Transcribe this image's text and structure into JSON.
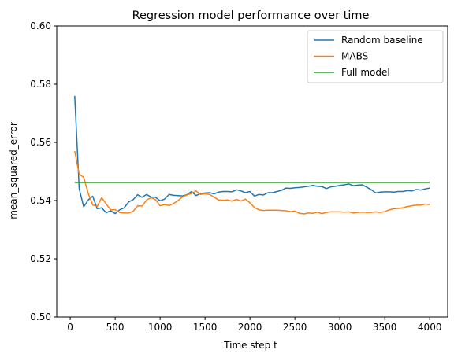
{
  "chart_data": {
    "type": "line",
    "title": "Regression model performance over time",
    "xlabel": "Time step t",
    "ylabel": "mean_squared_error",
    "xlim": [
      -150,
      4200
    ],
    "ylim": [
      0.5,
      0.6
    ],
    "xticks": [
      0,
      500,
      1000,
      1500,
      2000,
      2500,
      3000,
      3500,
      4000
    ],
    "xtick_labels": [
      "0",
      "500",
      "1000",
      "1500",
      "2000",
      "2500",
      "3000",
      "3500",
      "4000"
    ],
    "yticks": [
      0.5,
      0.52,
      0.54,
      0.56,
      0.58,
      0.6
    ],
    "ytick_labels": [
      "0.50",
      "0.52",
      "0.54",
      "0.56",
      "0.58",
      "0.60"
    ],
    "grid": false,
    "legend_position": "top-right",
    "series": [
      {
        "name": "Random baseline",
        "color": "#1f77b4",
        "x": [
          50,
          100,
          150,
          200,
          250,
          300,
          350,
          400,
          450,
          500,
          550,
          600,
          650,
          700,
          750,
          800,
          850,
          900,
          950,
          1000,
          1050,
          1100,
          1150,
          1200,
          1250,
          1300,
          1350,
          1400,
          1450,
          1500,
          1550,
          1600,
          1650,
          1700,
          1750,
          1800,
          1850,
          1900,
          1950,
          2000,
          2050,
          2100,
          2150,
          2200,
          2250,
          2300,
          2350,
          2400,
          2450,
          2500,
          2550,
          2600,
          2650,
          2700,
          2750,
          2800,
          2850,
          2900,
          2950,
          3000,
          3050,
          3100,
          3150,
          3200,
          3250,
          3300,
          3350,
          3400,
          3450,
          3500,
          3550,
          3600,
          3650,
          3700,
          3750,
          3800,
          3850,
          3900,
          3950,
          4000
        ],
        "y": [
          0.576,
          0.544,
          0.5378,
          0.5402,
          0.5415,
          0.5372,
          0.5375,
          0.5358,
          0.5365,
          0.5355,
          0.5368,
          0.5375,
          0.5395,
          0.5403,
          0.542,
          0.5411,
          0.5421,
          0.5412,
          0.5411,
          0.5399,
          0.5405,
          0.5421,
          0.5418,
          0.5417,
          0.5416,
          0.542,
          0.5431,
          0.5417,
          0.5424,
          0.5426,
          0.5427,
          0.5423,
          0.5429,
          0.5431,
          0.5431,
          0.543,
          0.5437,
          0.5433,
          0.5427,
          0.5431,
          0.5415,
          0.5421,
          0.5419,
          0.5427,
          0.5427,
          0.5431,
          0.5435,
          0.5443,
          0.5442,
          0.5444,
          0.5445,
          0.5447,
          0.5449,
          0.5452,
          0.5449,
          0.5448,
          0.5441,
          0.5447,
          0.5449,
          0.5452,
          0.5454,
          0.5457,
          0.5451,
          0.5453,
          0.5454,
          0.5446,
          0.5437,
          0.5426,
          0.5429,
          0.543,
          0.543,
          0.5429,
          0.5431,
          0.5431,
          0.5434,
          0.5433,
          0.5438,
          0.5436,
          0.544,
          0.5443
        ]
      },
      {
        "name": "MABS",
        "color": "#ff7f0e",
        "x": [
          50,
          100,
          150,
          200,
          250,
          300,
          350,
          400,
          450,
          500,
          550,
          600,
          650,
          700,
          750,
          800,
          850,
          900,
          950,
          1000,
          1050,
          1100,
          1150,
          1200,
          1250,
          1300,
          1350,
          1400,
          1450,
          1500,
          1550,
          1600,
          1650,
          1700,
          1750,
          1800,
          1850,
          1900,
          1950,
          2000,
          2050,
          2100,
          2150,
          2200,
          2250,
          2300,
          2350,
          2400,
          2450,
          2500,
          2550,
          2600,
          2650,
          2700,
          2750,
          2800,
          2850,
          2900,
          2950,
          3000,
          3050,
          3100,
          3150,
          3200,
          3250,
          3300,
          3350,
          3400,
          3450,
          3500,
          3550,
          3600,
          3650,
          3700,
          3750,
          3800,
          3850,
          3900,
          3950,
          4000
        ],
        "y": [
          0.557,
          0.549,
          0.548,
          0.5425,
          0.5385,
          0.538,
          0.541,
          0.5388,
          0.5368,
          0.5369,
          0.5359,
          0.5357,
          0.5357,
          0.5363,
          0.5382,
          0.5381,
          0.5402,
          0.541,
          0.5403,
          0.5382,
          0.5386,
          0.5383,
          0.539,
          0.54,
          0.5413,
          0.5419,
          0.5425,
          0.5433,
          0.5421,
          0.5423,
          0.5421,
          0.5412,
          0.5402,
          0.5401,
          0.5402,
          0.5398,
          0.5404,
          0.5398,
          0.5405,
          0.5392,
          0.5376,
          0.5368,
          0.5366,
          0.5367,
          0.5367,
          0.5367,
          0.5366,
          0.5365,
          0.5362,
          0.5364,
          0.5356,
          0.5354,
          0.5357,
          0.5356,
          0.536,
          0.5355,
          0.5359,
          0.5361,
          0.5361,
          0.5361,
          0.536,
          0.5361,
          0.5357,
          0.5359,
          0.536,
          0.5359,
          0.5359,
          0.5361,
          0.5359,
          0.5362,
          0.5368,
          0.5372,
          0.5373,
          0.5375,
          0.5379,
          0.5382,
          0.5384,
          0.5384,
          0.5388,
          0.5386
        ]
      },
      {
        "name": "Full model",
        "color": "#2ca02c",
        "x": [
          50,
          4000
        ],
        "y": [
          0.5462,
          0.5462
        ]
      }
    ]
  }
}
